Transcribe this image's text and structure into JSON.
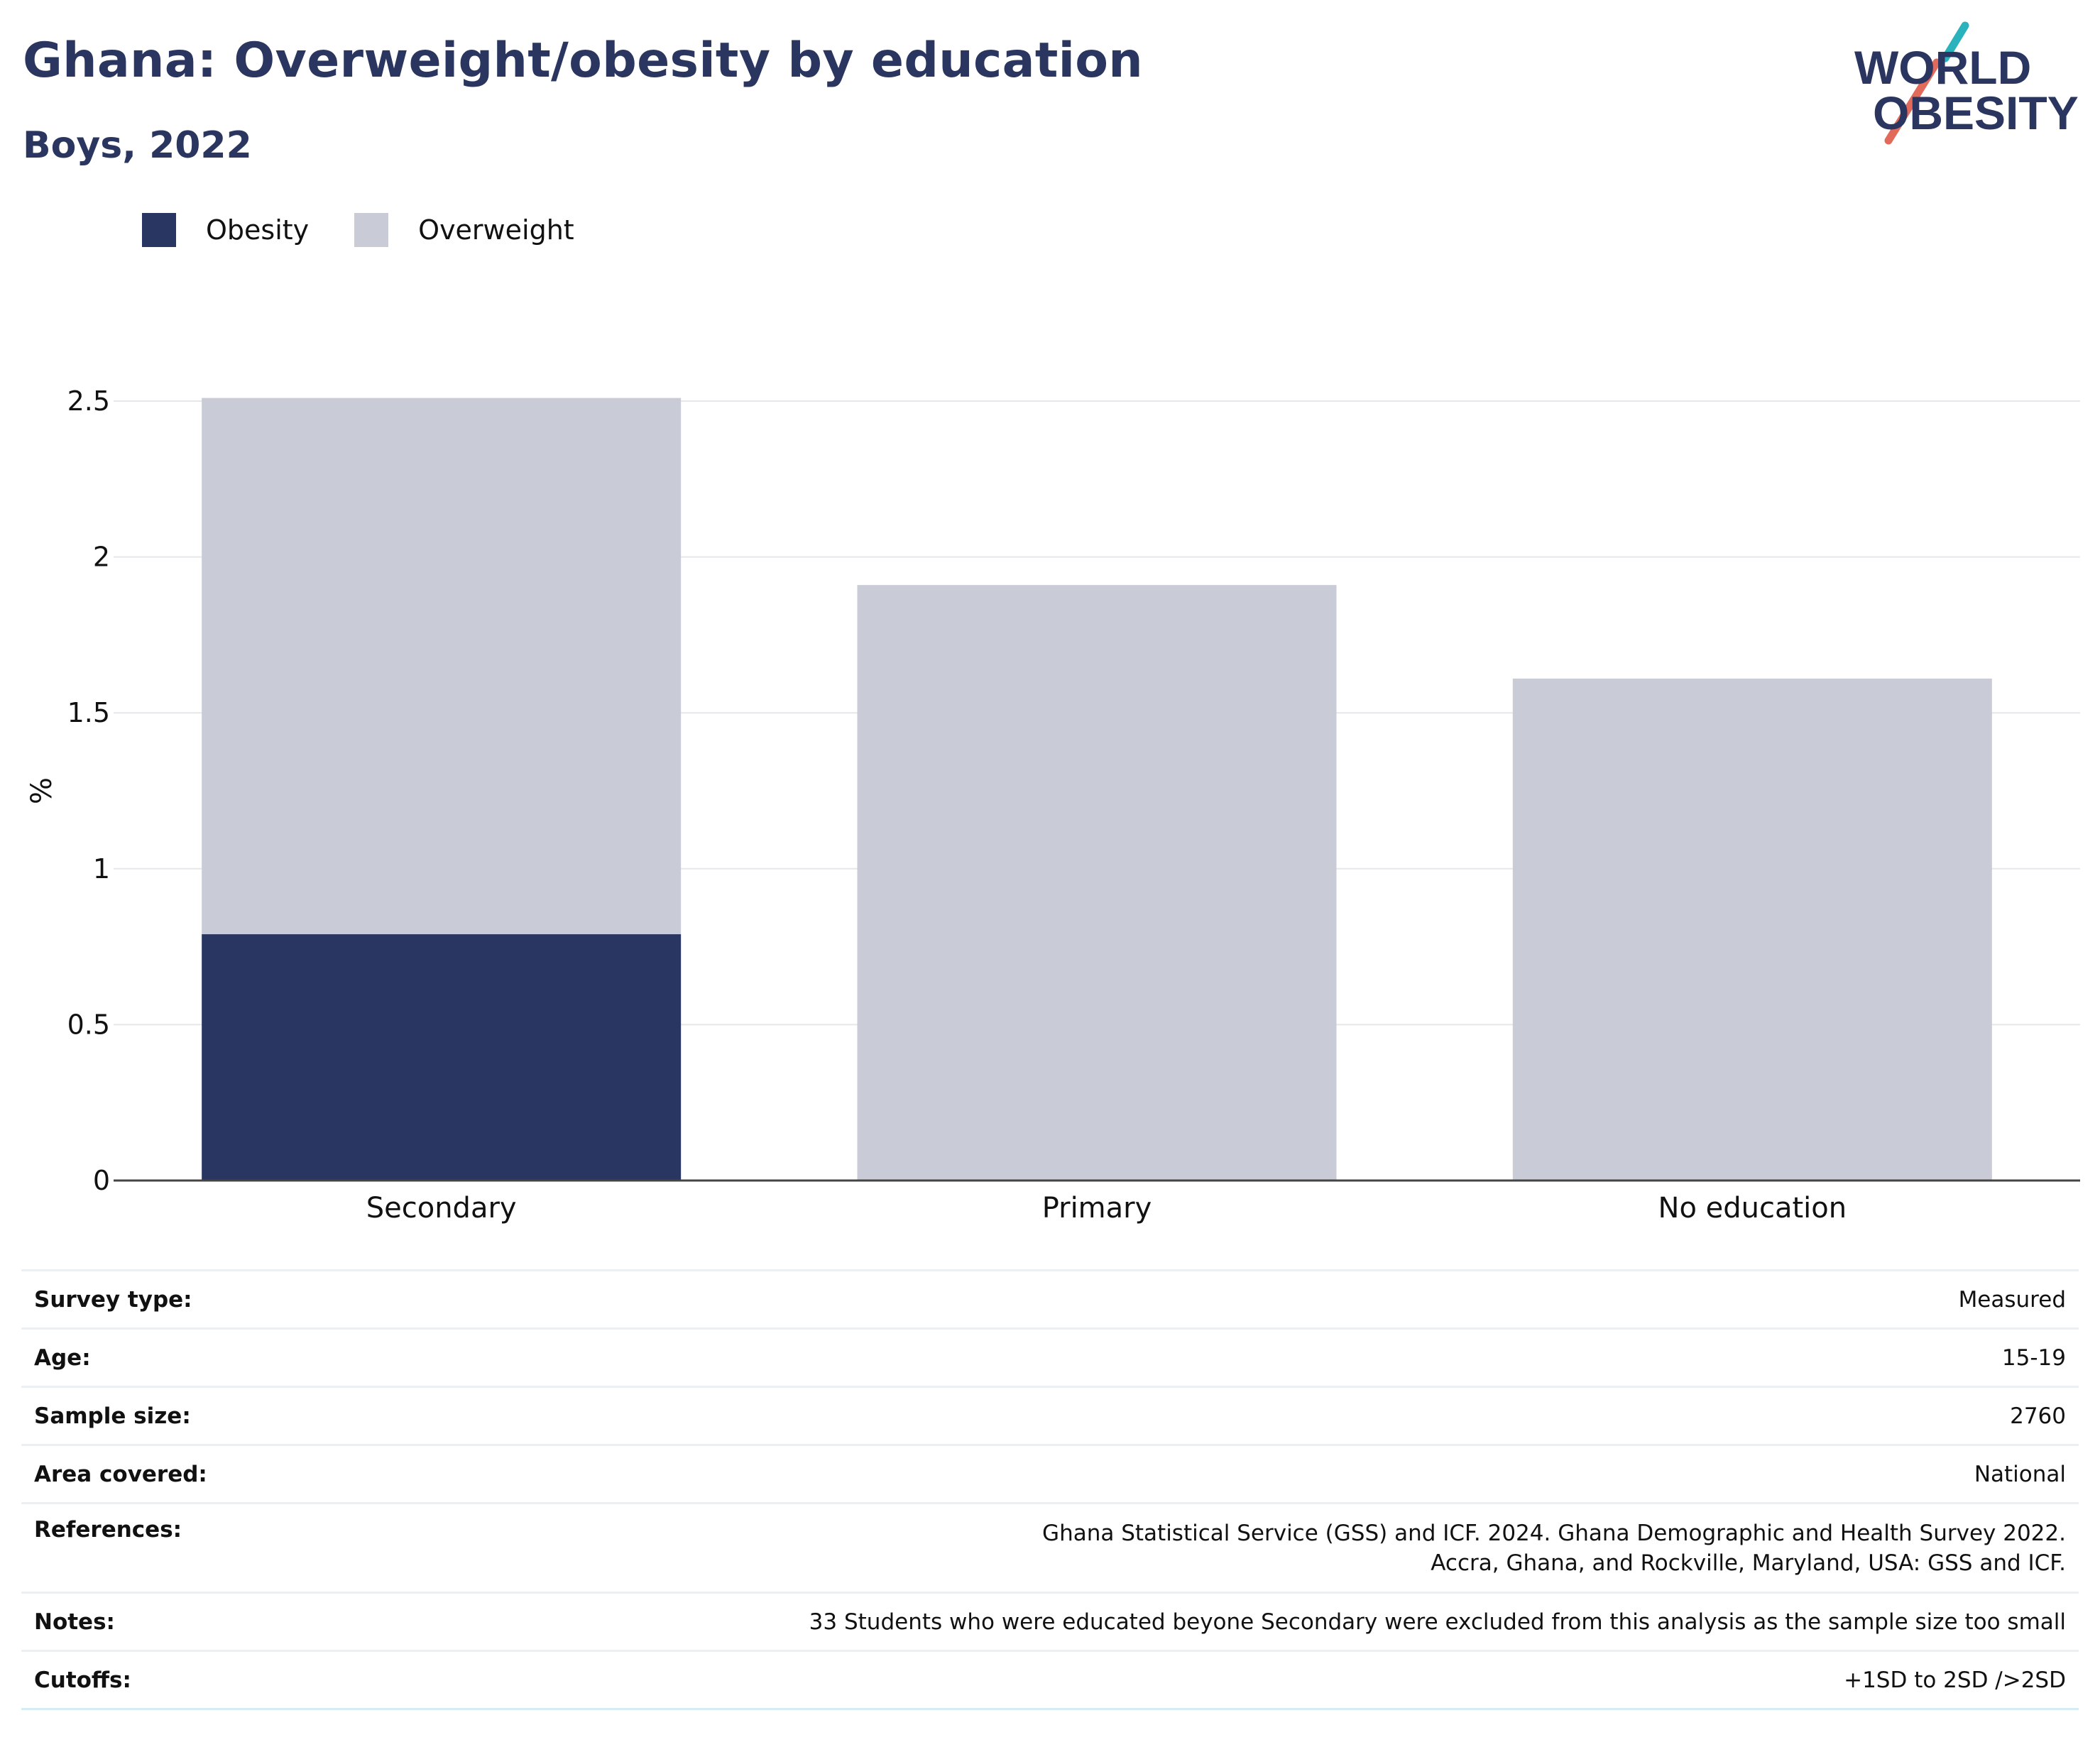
{
  "header": {
    "title": "Ghana: Overweight/obesity by education",
    "subtitle": "Boys, 2022"
  },
  "logo": {
    "line1": "WORLD",
    "line2": "OBESITY"
  },
  "legend": [
    {
      "label": "Obesity",
      "color": "#293662"
    },
    {
      "label": "Overweight",
      "color": "#c9cbd6"
    }
  ],
  "chart_data": {
    "type": "bar",
    "stacked": true,
    "categories": [
      "Secondary",
      "Primary",
      "No education"
    ],
    "series": [
      {
        "name": "Obesity",
        "color": "#293662",
        "values": [
          0.79,
          0,
          0
        ]
      },
      {
        "name": "Overweight",
        "color": "#c9cbd6",
        "values": [
          1.72,
          1.91,
          1.61
        ]
      }
    ],
    "ylabel": "%",
    "xlabel": "",
    "ylim": [
      0,
      2.5
    ],
    "yticks": [
      0,
      0.5,
      1,
      1.5,
      2,
      2.5
    ],
    "ytick_labels": [
      "0",
      "0.5",
      "1",
      "1.5",
      "2",
      "2.5"
    ],
    "grid": true,
    "legend_position": "top-left"
  },
  "info": [
    {
      "key": "Survey type:",
      "value": "Measured"
    },
    {
      "key": "Age:",
      "value": "15-19"
    },
    {
      "key": "Sample size:",
      "value": "2760"
    },
    {
      "key": "Area covered:",
      "value": "National"
    },
    {
      "key": "References:",
      "value": "Ghana Statistical Service (GSS) and ICF. 2024. Ghana Demographic and Health Survey 2022. Accra, Ghana, and Rockville, Maryland, USA: GSS and ICF."
    },
    {
      "key": "Notes:",
      "value": "33 Students who were educated beyone Secondary were excluded from this analysis as the sample size too small"
    },
    {
      "key": "Cutoffs:",
      "value": "+1SD to 2SD />2SD"
    }
  ]
}
